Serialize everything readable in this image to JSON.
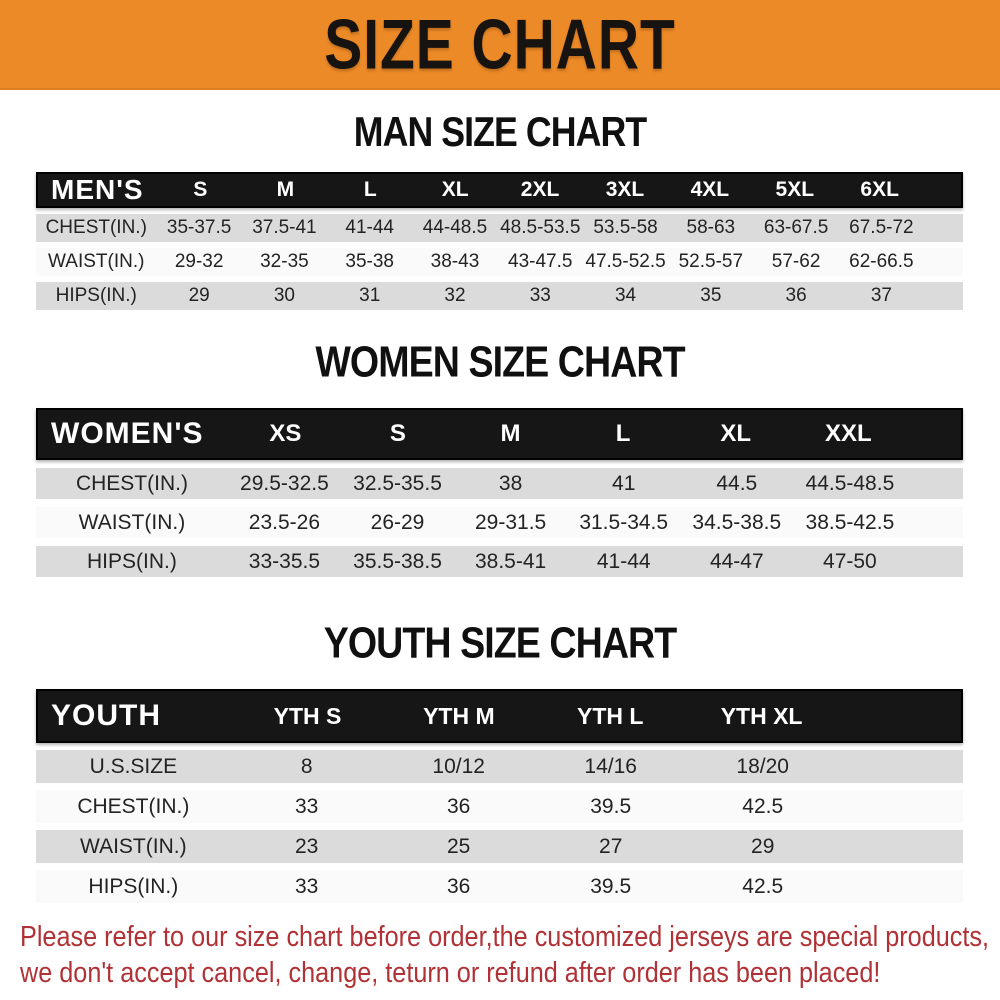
{
  "banner": {
    "title": "SIZE CHART"
  },
  "colors": {
    "banner_bg": "#EC8A28",
    "header_bg": "#161616",
    "row_gray": "#DBDBDB",
    "row_white": "#FAFAFA",
    "disclaimer_red": "#B03236"
  },
  "sections": [
    {
      "title": "MAN SIZE CHART",
      "header_label": "MEN'S",
      "sizes": [
        "S",
        "M",
        "L",
        "XL",
        "2XL",
        "3XL",
        "4XL",
        "5XL",
        "6XL"
      ],
      "rows": [
        {
          "label": "CHEST(IN.)",
          "values": [
            "35-37.5",
            "37.5-41",
            "41-44",
            "44-48.5",
            "48.5-53.5",
            "53.5-58",
            "58-63",
            "63-67.5",
            "67.5-72"
          ]
        },
        {
          "label": "WAIST(IN.)",
          "values": [
            "29-32",
            "32-35",
            "35-38",
            "38-43",
            "43-47.5",
            "47.5-52.5",
            "52.5-57",
            "57-62",
            "62-66.5"
          ]
        },
        {
          "label": "HIPS(IN.)",
          "values": [
            "29",
            "30",
            "31",
            "32",
            "33",
            "34",
            "35",
            "36",
            "37"
          ]
        }
      ]
    },
    {
      "title": "WOMEN SIZE CHART",
      "header_label": "WOMEN'S",
      "sizes": [
        "XS",
        "S",
        "M",
        "L",
        "XL",
        "XXL"
      ],
      "rows": [
        {
          "label": "CHEST(IN.)",
          "values": [
            "29.5-32.5",
            "32.5-35.5",
            "38",
            "41",
            "44.5",
            "44.5-48.5"
          ]
        },
        {
          "label": "WAIST(IN.)",
          "values": [
            "23.5-26",
            "26-29",
            "29-31.5",
            "31.5-34.5",
            "34.5-38.5",
            "38.5-42.5"
          ]
        },
        {
          "label": "HIPS(IN.)",
          "values": [
            "33-35.5",
            "35.5-38.5",
            "38.5-41",
            "41-44",
            "44-47",
            "47-50"
          ]
        }
      ]
    },
    {
      "title": "YOUTH SIZE CHART",
      "header_label": "YOUTH",
      "sizes": [
        "YTH S",
        "YTH M",
        "YTH L",
        "YTH XL"
      ],
      "rows": [
        {
          "label": "U.S.SIZE",
          "values": [
            "8",
            "10/12",
            "14/16",
            "18/20"
          ]
        },
        {
          "label": "CHEST(IN.)",
          "values": [
            "33",
            "36",
            "39.5",
            "42.5"
          ]
        },
        {
          "label": "WAIST(IN.)",
          "values": [
            "23",
            "25",
            "27",
            "29"
          ]
        },
        {
          "label": "HIPS(IN.)",
          "values": [
            "33",
            "36",
            "39.5",
            "42.5"
          ]
        }
      ]
    }
  ],
  "disclaimer": {
    "line1": "Please refer to our size chart before order,the customized jerseys are special products,",
    "line2": "we don't accept cancel, change, teturn or refund after order has been placed!"
  }
}
